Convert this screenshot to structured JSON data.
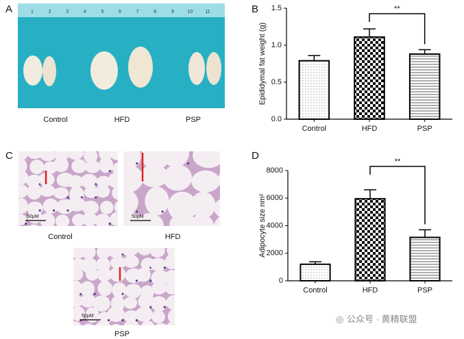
{
  "figure": {
    "panel_labels": [
      "A",
      "B",
      "C",
      "D"
    ],
    "photo_captions": [
      "Control",
      "HFD",
      "PSP"
    ],
    "ruler_labels": [
      "1",
      "2",
      "3",
      "4",
      "5",
      "6",
      "7",
      "8",
      "9",
      "10",
      "11"
    ],
    "histology_captions": [
      "Control",
      "HFD",
      "PSP"
    ],
    "scale_bar_label": "50μM",
    "watermark": "公众号 · 黄精联盟"
  },
  "chart_data": [
    {
      "type": "bar",
      "y_label": "Epididymal fat weight (g)",
      "categories": [
        "Control",
        "HFD",
        "PSP"
      ],
      "values": [
        0.79,
        1.11,
        0.88
      ],
      "errors": [
        0.07,
        0.11,
        0.06
      ],
      "fill_patterns": [
        "dots",
        "checker",
        "hlines"
      ],
      "ylim": [
        0,
        1.5
      ],
      "yticks": [
        {
          "value": 0,
          "label": "0.0"
        },
        0.5,
        {
          "value": 1,
          "label": "1.0"
        },
        1.5
      ],
      "annotation": "**"
    },
    {
      "type": "bar",
      "y_label": "Adipocyte size nm²",
      "categories": [
        "Control",
        "HFD",
        "PSP"
      ],
      "values": [
        1200,
        5950,
        3150
      ],
      "errors": [
        180,
        650,
        550
      ],
      "fill_patterns": [
        "dots",
        "checker",
        "hlines"
      ],
      "ylim": [
        0,
        8000
      ],
      "yticks": [
        0,
        2000,
        4000,
        6000,
        8000
      ],
      "annotation": "**"
    }
  ]
}
